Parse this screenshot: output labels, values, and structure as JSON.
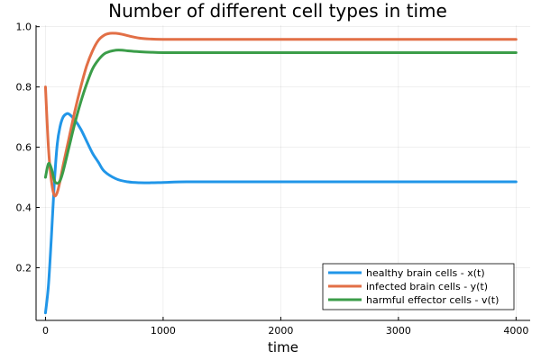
{
  "chart_data": {
    "type": "line",
    "title": "Number of different cell types in time",
    "xlabel": "time",
    "ylabel": "",
    "xlim": [
      -80,
      4120
    ],
    "ylim": [
      0.025,
      1.005
    ],
    "xticks": [
      0,
      1000,
      2000,
      3000,
      4000
    ],
    "xtick_labels": [
      "0",
      "1000",
      "2000",
      "3000",
      "4000"
    ],
    "yticks": [
      0.2,
      0.4,
      0.6,
      0.8,
      1.0
    ],
    "ytick_labels": [
      "0.2",
      "0.4",
      "0.6",
      "0.8",
      "1.0"
    ],
    "grid": true,
    "legend_position": "bottom-right",
    "series": [
      {
        "name": "healthy brain cells - x(t)",
        "color": "#2196e8",
        "x": [
          0,
          25,
          50,
          75,
          100,
          125,
          150,
          175,
          200,
          250,
          300,
          350,
          400,
          450,
          500,
          600,
          700,
          800,
          900,
          1000,
          1200,
          1500,
          2000,
          3000,
          4000
        ],
        "y": [
          0.05,
          0.14,
          0.3,
          0.48,
          0.61,
          0.67,
          0.7,
          0.71,
          0.71,
          0.69,
          0.66,
          0.62,
          0.58,
          0.55,
          0.52,
          0.495,
          0.485,
          0.482,
          0.482,
          0.483,
          0.485,
          0.485,
          0.485,
          0.485,
          0.485
        ]
      },
      {
        "name": "infected brain cells - y(t)",
        "color": "#e26f46",
        "x": [
          0,
          25,
          50,
          75,
          100,
          125,
          150,
          200,
          250,
          300,
          350,
          400,
          450,
          500,
          550,
          600,
          650,
          700,
          800,
          900,
          1000,
          1200,
          1500,
          2000,
          3000,
          4000
        ],
        "y": [
          0.8,
          0.6,
          0.49,
          0.44,
          0.45,
          0.49,
          0.54,
          0.63,
          0.72,
          0.8,
          0.87,
          0.92,
          0.955,
          0.972,
          0.978,
          0.978,
          0.975,
          0.97,
          0.962,
          0.959,
          0.958,
          0.958,
          0.958,
          0.958,
          0.958,
          0.958
        ]
      },
      {
        "name": "harmful effector cells - v(t)",
        "color": "#3b9d49",
        "x": [
          0,
          25,
          50,
          75,
          100,
          125,
          150,
          200,
          250,
          300,
          350,
          400,
          450,
          500,
          550,
          600,
          650,
          700,
          800,
          900,
          1000,
          1200,
          1500,
          2000,
          3000,
          4000
        ],
        "y": [
          0.5,
          0.545,
          0.53,
          0.49,
          0.48,
          0.49,
          0.52,
          0.6,
          0.68,
          0.75,
          0.81,
          0.86,
          0.89,
          0.91,
          0.918,
          0.922,
          0.922,
          0.92,
          0.917,
          0.915,
          0.914,
          0.914,
          0.914,
          0.914,
          0.914,
          0.914
        ]
      }
    ]
  }
}
